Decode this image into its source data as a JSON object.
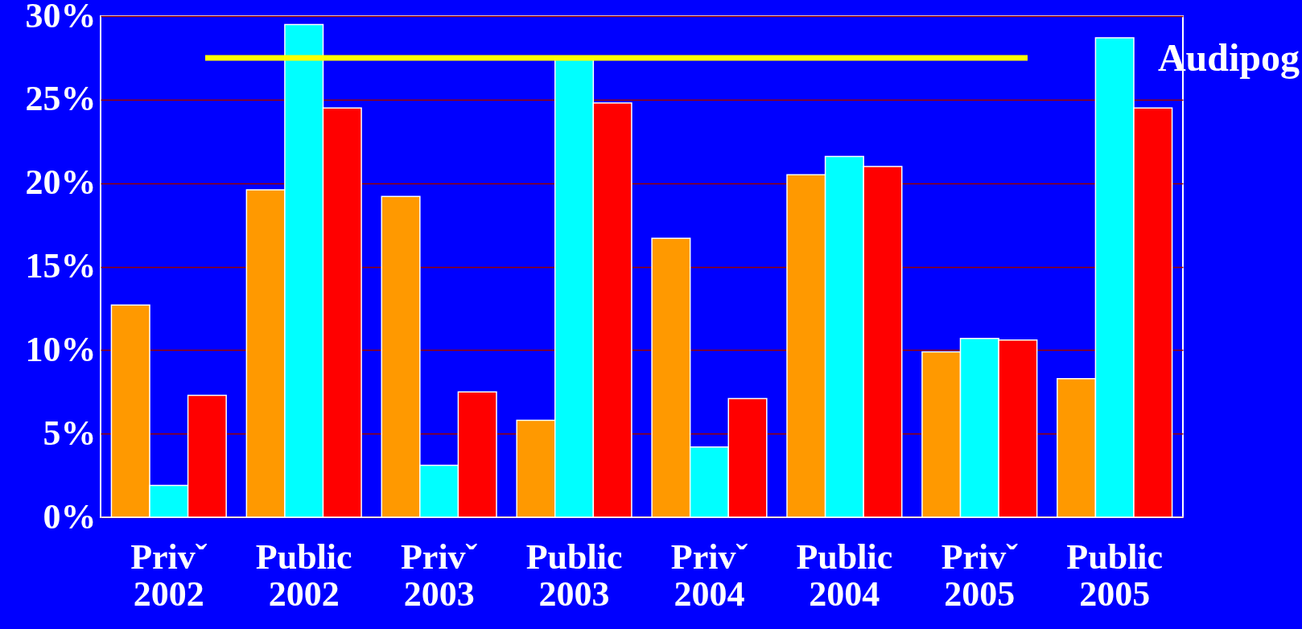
{
  "chart_data": {
    "type": "bar",
    "categories": [
      "Privˇ 2002",
      "Public 2002",
      "Privˇ 2003",
      "Public 2003",
      "Privˇ 2004",
      "Public 2004",
      "Privˇ 2005",
      "Public 2005"
    ],
    "series": [
      {
        "color": "#ff9900",
        "values": [
          12.7,
          19.6,
          19.2,
          5.8,
          16.7,
          20.5,
          9.9,
          8.3
        ]
      },
      {
        "color": "#00ffff",
        "values": [
          1.9,
          29.5,
          3.1,
          27.4,
          4.2,
          21.6,
          10.7,
          28.7
        ]
      },
      {
        "color": "#ff0000",
        "values": [
          7.3,
          24.5,
          7.5,
          24.8,
          7.1,
          21.0,
          10.6,
          24.5
        ]
      }
    ],
    "ylim": [
      0,
      30
    ],
    "yticks": [
      {
        "value": 0,
        "label": "0%"
      },
      {
        "value": 5,
        "label": "5%"
      },
      {
        "value": 10,
        "label": "10%"
      },
      {
        "value": 15,
        "label": "15%"
      },
      {
        "value": 20,
        "label": "20%"
      },
      {
        "value": 25,
        "label": "25%"
      },
      {
        "value": 30,
        "label": "30%"
      }
    ],
    "grid": "y",
    "ref_lines": [
      {
        "axis": "y",
        "value": 27.5,
        "color": "#ffff00"
      }
    ],
    "annotations": [
      "Audipog"
    ]
  }
}
